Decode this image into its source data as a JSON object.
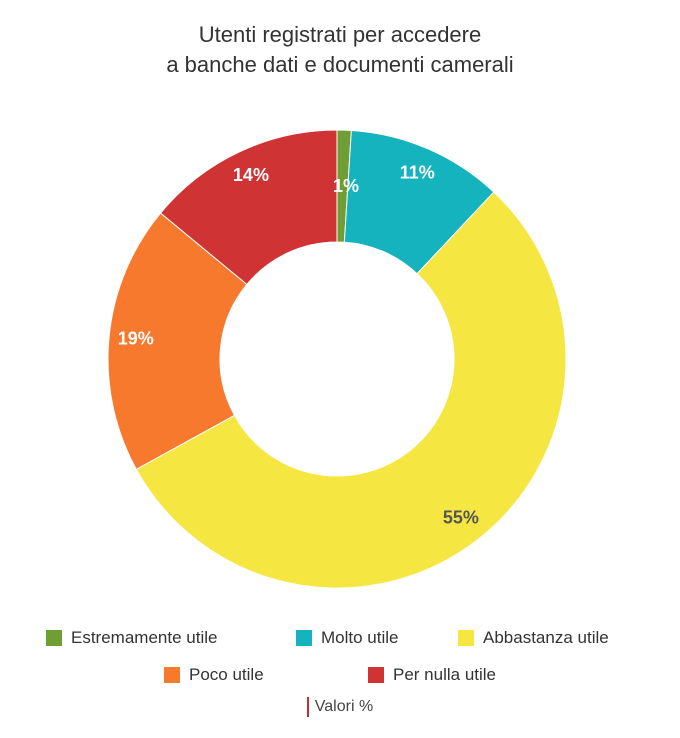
{
  "chart_data": {
    "type": "pie",
    "title_lines": [
      "Utenti registrati per accedere",
      "a banche dati e documenti camerali"
    ],
    "categories": [
      "Estremamente utile",
      "Molto utile",
      "Abbastanza utile",
      "Poco utile",
      "Per nulla utile"
    ],
    "values": [
      1,
      11,
      55,
      19,
      14
    ],
    "value_labels": [
      "1%",
      "11%",
      "55%",
      "19%",
      "14%"
    ],
    "colors": [
      "#6e9e34",
      "#14b3bd",
      "#f5e642",
      "#f7792e",
      "#d03333"
    ],
    "label_colors": [
      "#ffffff",
      "#ffffff",
      "#555555",
      "#ffffff",
      "#ffffff"
    ],
    "donut": true,
    "legend_position": "bottom",
    "units_note": "Valori %"
  }
}
